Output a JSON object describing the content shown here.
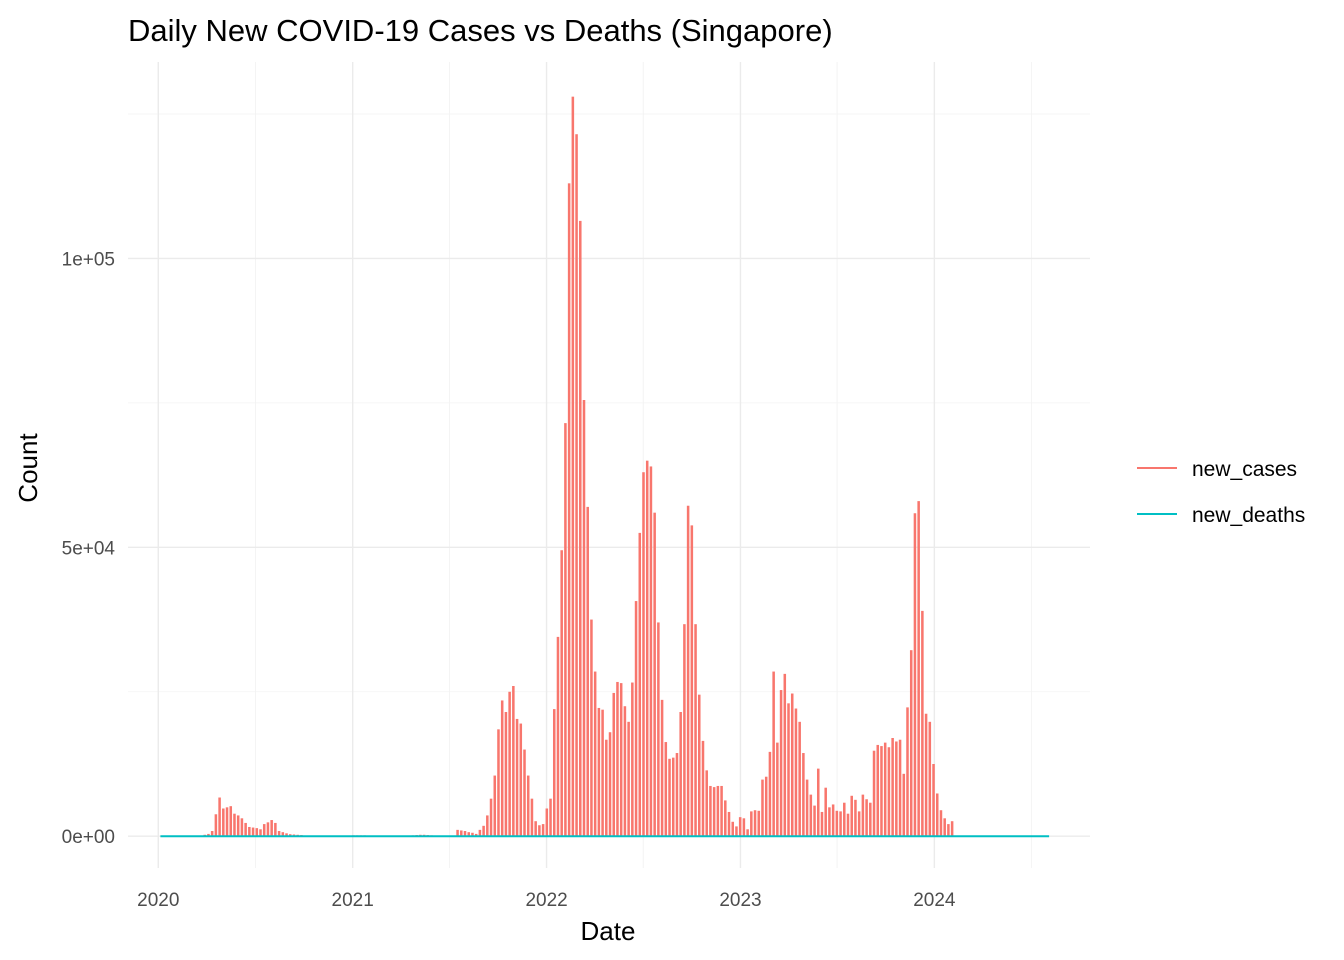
{
  "chart_data": {
    "type": "bar",
    "title": "Daily New COVID-19 Cases vs Deaths (Singapore)",
    "xlabel": "Date",
    "ylabel": "Count",
    "x_ticks": [
      "2020",
      "2021",
      "2022",
      "2023",
      "2024"
    ],
    "y_ticks": [
      "0e+00",
      "5e+04",
      "1e+05"
    ],
    "ylim": [
      -5500,
      134000
    ],
    "xlim": [
      "2019-11-05",
      "2024-10-20"
    ],
    "grid": true,
    "legend_position": "right",
    "colors": {
      "new_cases": "#F8766D",
      "new_deaths": "#00BFC4"
    },
    "series": [
      {
        "name": "new_cases",
        "type": "bar",
        "color": "#F8766D",
        "points": [
          [
            "2020-03-29",
            250
          ],
          [
            "2020-04-05",
            400
          ],
          [
            "2020-04-12",
            900
          ],
          [
            "2020-04-19",
            3800
          ],
          [
            "2020-04-26",
            6700
          ],
          [
            "2020-05-03",
            4800
          ],
          [
            "2020-05-10",
            5000
          ],
          [
            "2020-05-17",
            5200
          ],
          [
            "2020-05-24",
            3900
          ],
          [
            "2020-05-31",
            3600
          ],
          [
            "2020-06-07",
            3100
          ],
          [
            "2020-06-14",
            2300
          ],
          [
            "2020-06-21",
            1600
          ],
          [
            "2020-06-28",
            1500
          ],
          [
            "2020-07-05",
            1400
          ],
          [
            "2020-07-12",
            1200
          ],
          [
            "2020-07-19",
            2100
          ],
          [
            "2020-07-26",
            2400
          ],
          [
            "2020-08-02",
            2800
          ],
          [
            "2020-08-09",
            2300
          ],
          [
            "2020-08-16",
            900
          ],
          [
            "2020-08-23",
            700
          ],
          [
            "2020-08-30",
            500
          ],
          [
            "2020-09-06",
            350
          ],
          [
            "2020-09-13",
            300
          ],
          [
            "2020-09-20",
            250
          ],
          [
            "2020-09-27",
            200
          ],
          [
            "2020-10-04",
            100
          ],
          [
            "2021-01-03",
            150
          ],
          [
            "2021-01-10",
            150
          ],
          [
            "2021-01-17",
            150
          ],
          [
            "2021-01-24",
            150
          ],
          [
            "2021-04-25",
            150
          ],
          [
            "2021-05-02",
            200
          ],
          [
            "2021-05-09",
            250
          ],
          [
            "2021-05-16",
            250
          ],
          [
            "2021-05-23",
            200
          ],
          [
            "2021-05-30",
            150
          ],
          [
            "2021-07-18",
            1100
          ],
          [
            "2021-07-25",
            1000
          ],
          [
            "2021-08-01",
            900
          ],
          [
            "2021-08-08",
            700
          ],
          [
            "2021-08-15",
            600
          ],
          [
            "2021-08-22",
            400
          ],
          [
            "2021-08-29",
            1100
          ],
          [
            "2021-09-05",
            1800
          ],
          [
            "2021-09-12",
            3600
          ],
          [
            "2021-09-19",
            6500
          ],
          [
            "2021-09-26",
            10500
          ],
          [
            "2021-10-03",
            18500
          ],
          [
            "2021-10-10",
            23500
          ],
          [
            "2021-10-17",
            21500
          ],
          [
            "2021-10-24",
            25000
          ],
          [
            "2021-10-31",
            26000
          ],
          [
            "2021-11-07",
            20300
          ],
          [
            "2021-11-14",
            19500
          ],
          [
            "2021-11-21",
            15000
          ],
          [
            "2021-11-28",
            10500
          ],
          [
            "2021-12-05",
            6500
          ],
          [
            "2021-12-12",
            2600
          ],
          [
            "2021-12-19",
            1900
          ],
          [
            "2021-12-26",
            2100
          ],
          [
            "2022-01-02",
            4800
          ],
          [
            "2022-01-09",
            6500
          ],
          [
            "2022-01-16",
            22000
          ],
          [
            "2022-01-23",
            34500
          ],
          [
            "2022-01-30",
            49500
          ],
          [
            "2022-02-06",
            71500
          ],
          [
            "2022-02-13",
            113000
          ],
          [
            "2022-02-20",
            128000
          ],
          [
            "2022-02-27",
            121500
          ],
          [
            "2022-03-06",
            106500
          ],
          [
            "2022-03-13",
            75500
          ],
          [
            "2022-03-20",
            57000
          ],
          [
            "2022-03-27",
            37500
          ],
          [
            "2022-04-03",
            28500
          ],
          [
            "2022-04-10",
            22200
          ],
          [
            "2022-04-17",
            21900
          ],
          [
            "2022-04-24",
            16700
          ],
          [
            "2022-05-01",
            18000
          ],
          [
            "2022-05-08",
            24800
          ],
          [
            "2022-05-15",
            26700
          ],
          [
            "2022-05-22",
            26500
          ],
          [
            "2022-05-29",
            22500
          ],
          [
            "2022-06-05",
            19800
          ],
          [
            "2022-06-12",
            26600
          ],
          [
            "2022-06-19",
            40700
          ],
          [
            "2022-06-26",
            52500
          ],
          [
            "2022-07-03",
            63000
          ],
          [
            "2022-07-10",
            65000
          ],
          [
            "2022-07-17",
            64000
          ],
          [
            "2022-07-24",
            56000
          ],
          [
            "2022-07-31",
            37000
          ],
          [
            "2022-08-07",
            23600
          ],
          [
            "2022-08-14",
            16300
          ],
          [
            "2022-08-21",
            13400
          ],
          [
            "2022-08-28",
            13600
          ],
          [
            "2022-09-04",
            14400
          ],
          [
            "2022-09-11",
            21500
          ],
          [
            "2022-09-18",
            36700
          ],
          [
            "2022-09-25",
            57200
          ],
          [
            "2022-10-02",
            53800
          ],
          [
            "2022-10-09",
            36700
          ],
          [
            "2022-10-16",
            24500
          ],
          [
            "2022-10-23",
            16500
          ],
          [
            "2022-10-30",
            11400
          ],
          [
            "2022-11-06",
            8700
          ],
          [
            "2022-11-13",
            8500
          ],
          [
            "2022-11-20",
            8700
          ],
          [
            "2022-11-27",
            8700
          ],
          [
            "2022-12-04",
            6200
          ],
          [
            "2022-12-11",
            4200
          ],
          [
            "2022-12-18",
            2500
          ],
          [
            "2022-12-25",
            1700
          ],
          [
            "2023-01-01",
            3300
          ],
          [
            "2023-01-08",
            3100
          ],
          [
            "2023-01-15",
            1200
          ],
          [
            "2023-01-22",
            4300
          ],
          [
            "2023-01-29",
            4500
          ],
          [
            "2023-02-05",
            4400
          ],
          [
            "2023-02-12",
            9800
          ],
          [
            "2023-02-19",
            10300
          ],
          [
            "2023-02-26",
            14600
          ],
          [
            "2023-03-05",
            28500
          ],
          [
            "2023-03-12",
            16200
          ],
          [
            "2023-03-19",
            25300
          ],
          [
            "2023-03-26",
            28100
          ],
          [
            "2023-04-02",
            23000
          ],
          [
            "2023-04-09",
            24700
          ],
          [
            "2023-04-16",
            22100
          ],
          [
            "2023-04-23",
            19800
          ],
          [
            "2023-04-30",
            14400
          ],
          [
            "2023-05-07",
            9800
          ],
          [
            "2023-05-14",
            7200
          ],
          [
            "2023-05-21",
            5300
          ],
          [
            "2023-05-28",
            11700
          ],
          [
            "2023-06-04",
            4200
          ],
          [
            "2023-06-11",
            8400
          ],
          [
            "2023-06-18",
            5000
          ],
          [
            "2023-06-25",
            5500
          ],
          [
            "2023-07-02",
            4400
          ],
          [
            "2023-07-09",
            4300
          ],
          [
            "2023-07-16",
            5800
          ],
          [
            "2023-07-23",
            3900
          ],
          [
            "2023-07-30",
            7000
          ],
          [
            "2023-08-06",
            6300
          ],
          [
            "2023-08-13",
            4300
          ],
          [
            "2023-08-20",
            7200
          ],
          [
            "2023-08-27",
            6400
          ],
          [
            "2023-09-03",
            5800
          ],
          [
            "2023-09-10",
            14800
          ],
          [
            "2023-09-17",
            15800
          ],
          [
            "2023-09-24",
            15600
          ],
          [
            "2023-10-01",
            16200
          ],
          [
            "2023-10-08",
            15400
          ],
          [
            "2023-10-15",
            17000
          ],
          [
            "2023-10-22",
            16400
          ],
          [
            "2023-10-29",
            16700
          ],
          [
            "2023-11-05",
            10800
          ],
          [
            "2023-11-12",
            22300
          ],
          [
            "2023-11-19",
            32200
          ],
          [
            "2023-11-26",
            55900
          ],
          [
            "2023-12-03",
            58000
          ],
          [
            "2023-12-10",
            39000
          ],
          [
            "2023-12-17",
            21200
          ],
          [
            "2023-12-24",
            19800
          ],
          [
            "2023-12-31",
            12500
          ],
          [
            "2024-01-07",
            7400
          ],
          [
            "2024-01-14",
            4500
          ],
          [
            "2024-01-21",
            3100
          ],
          [
            "2024-01-28",
            2100
          ],
          [
            "2024-02-04",
            2600
          ]
        ]
      },
      {
        "name": "new_deaths",
        "type": "line",
        "color": "#00BFC4",
        "points": [
          [
            "2020-01-05",
            0
          ],
          [
            "2020-07-05",
            0
          ],
          [
            "2021-01-03",
            0
          ],
          [
            "2021-07-04",
            0
          ],
          [
            "2022-01-02",
            0
          ],
          [
            "2022-03-06",
            0
          ],
          [
            "2022-07-03",
            0
          ],
          [
            "2023-01-01",
            0
          ],
          [
            "2023-07-02",
            0
          ],
          [
            "2024-01-07",
            0
          ],
          [
            "2024-08-04",
            0
          ]
        ]
      }
    ],
    "legend": [
      "new_cases",
      "new_deaths"
    ]
  }
}
